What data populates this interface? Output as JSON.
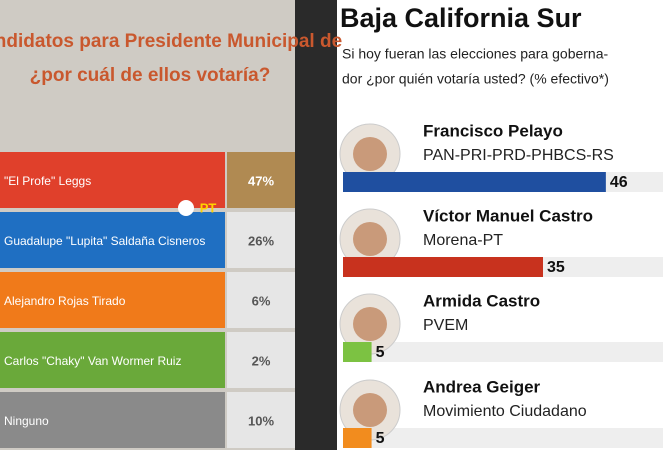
{
  "chart_data": [
    {
      "type": "table-bar",
      "title": [
        "s candidatos para Presidente Municipal de",
        "¿por cuál de ellos votaría?"
      ],
      "categories": [
        "\"El Profe\" Leggs",
        "Guadalupe \"Lupita\" Saldaña Cisneros",
        "Alejandro Rojas Tirado",
        "Carlos \"Chaky\" Van Wormer Ruiz",
        "Ninguno"
      ],
      "values": [
        47,
        26,
        6,
        2,
        10
      ],
      "value_labels": [
        "47%",
        "26%",
        "6%",
        "2%",
        "10%"
      ],
      "colors": [
        "#e0402b",
        "#1f6fc2",
        "#f07a1a",
        "#6aa93a",
        "#8a8a8a"
      ],
      "annotations": [
        "PT"
      ]
    },
    {
      "type": "hbar",
      "title": "Baja California Sur",
      "subtitle": [
        "Si hoy fueran las elecciones para goberna-",
        "dor ¿por quién votaría usted? (% efectivo*)"
      ],
      "categories": [
        "Francisco Pelayo",
        "Víctor Manuel Castro",
        "Armida Castro",
        "Andrea Geiger"
      ],
      "parties": [
        "PAN-PRI-PRD-PHBCS-RS",
        "Morena-PT",
        "PVEM",
        "Movimiento Ciudadano"
      ],
      "values": [
        46,
        35,
        5,
        5
      ],
      "colors": [
        "#1f4fa0",
        "#c8321e",
        "#7cc242",
        "#f28c1e"
      ],
      "xlim": [
        0,
        56
      ]
    }
  ]
}
